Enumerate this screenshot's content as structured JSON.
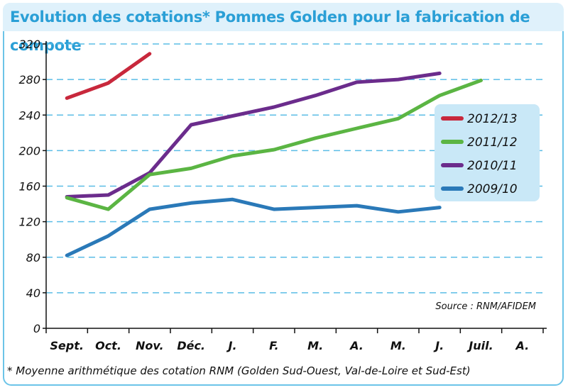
{
  "chart_data": {
    "type": "line",
    "title": "Evolution des cotations* Pommes Golden pour la fabrication de compote",
    "categories": [
      "Sept.",
      "Oct.",
      "Nov.",
      "Déc.",
      "J.",
      "F.",
      "M.",
      "A.",
      "M.",
      "J.",
      "Juil.",
      "A."
    ],
    "ylim": [
      0,
      320
    ],
    "yticks": [
      0,
      40,
      80,
      120,
      160,
      200,
      240,
      280,
      320
    ],
    "grid": true,
    "legend_position": "right",
    "series": [
      {
        "name": "2012/13",
        "color": "#c8283c",
        "values": [
          259,
          276,
          309,
          null,
          null,
          null,
          null,
          null,
          null,
          null,
          null,
          null
        ]
      },
      {
        "name": "2011/12",
        "color": "#5bb543",
        "values": [
          147,
          134,
          173,
          180,
          194,
          201,
          214,
          225,
          236,
          262,
          279,
          null
        ]
      },
      {
        "name": "2010/11",
        "color": "#6b2c8c",
        "values": [
          148,
          150,
          175,
          229,
          239,
          249,
          262,
          277,
          280,
          287,
          null,
          null
        ]
      },
      {
        "name": "2009/10",
        "color": "#2a79b8",
        "values": [
          82,
          104,
          134,
          141,
          145,
          134,
          136,
          138,
          131,
          136,
          null,
          null
        ]
      }
    ],
    "source": "Source : RNM/AFIDEM",
    "footnote": "* Moyenne arithmétique des cotation RNM (Golden Sud-Ouest, Val-de-Loire et Sud-Est)"
  }
}
